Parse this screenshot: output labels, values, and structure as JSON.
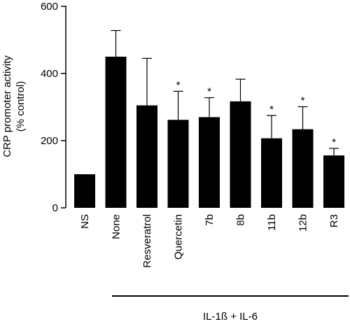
{
  "chart_data": {
    "type": "bar",
    "title": "",
    "ylabel_line1": "CRP promoter activity",
    "ylabel_line2": "(% control)",
    "xlabel": "",
    "ylim": [
      0,
      600
    ],
    "yticks": [
      0,
      200,
      400,
      600
    ],
    "categories": [
      "NS",
      "None",
      "Resveratrol",
      "Quercetin",
      "7b",
      "8b",
      "11b",
      "12b",
      "R3"
    ],
    "values": [
      100,
      450,
      305,
      262,
      270,
      317,
      207,
      234,
      156
    ],
    "errors": [
      0,
      78,
      140,
      85,
      58,
      66,
      68,
      67,
      21
    ],
    "significance": [
      "",
      "",
      "",
      "*",
      "*",
      "",
      "*",
      "*",
      "*"
    ],
    "group_label": "IL-1ß + IL-6",
    "group_start_index": 1,
    "bar_color": "#000000"
  }
}
